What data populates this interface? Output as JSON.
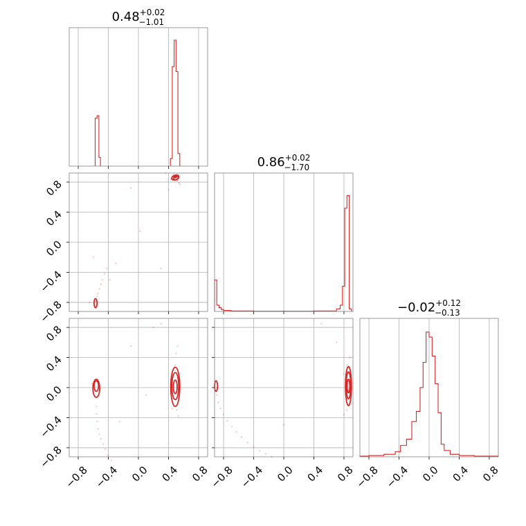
{
  "chart_data": {
    "type": "corner",
    "color": "#d62728",
    "grid": true,
    "tick_values": [
      -0.8,
      -0.4,
      0.0,
      0.4,
      0.8
    ],
    "tick_labels": [
      "−0.8",
      "−0.4",
      "0.0",
      "0.4",
      "0.8"
    ],
    "parameters": [
      {
        "title": {
          "median": "0.48",
          "upper": "+0.02",
          "lower": "−1.01"
        },
        "range": [
          -0.92,
          0.92
        ],
        "hist": {
          "bins": [
            [
              -0.575,
              -0.55,
              0.38
            ],
            [
              -0.55,
              -0.525,
              0.4
            ],
            [
              -0.525,
              -0.505,
              0.07
            ],
            [
              0.425,
              0.45,
              0.06
            ],
            [
              0.45,
              0.475,
              0.79
            ],
            [
              0.475,
              0.5,
              1.0
            ],
            [
              0.5,
              0.525,
              0.75
            ],
            [
              0.525,
              0.55,
              0.1
            ]
          ]
        }
      },
      {
        "title": {
          "median": "0.86",
          "upper": "+0.02",
          "lower": "−1.70"
        },
        "range": [
          -0.92,
          0.92
        ],
        "hist": {
          "bins": [
            [
              -0.92,
              -0.89,
              0.25
            ],
            [
              -0.89,
              -0.86,
              0.05
            ],
            [
              -0.86,
              -0.83,
              0.03
            ],
            [
              -0.83,
              -0.8,
              0.015
            ],
            [
              -0.8,
              -0.7,
              0.008
            ],
            [
              -0.7,
              -0.4,
              0.004
            ],
            [
              -0.4,
              0.4,
              0.002
            ],
            [
              0.4,
              0.7,
              0.004
            ],
            [
              0.7,
              0.75,
              0.02
            ],
            [
              0.75,
              0.78,
              0.05
            ],
            [
              0.78,
              0.81,
              0.2
            ],
            [
              0.81,
              0.84,
              0.82
            ],
            [
              0.84,
              0.87,
              0.92
            ],
            [
              0.87,
              0.9,
              0.02
            ]
          ]
        }
      },
      {
        "title": {
          "median": "−0.02",
          "upper": "+0.12",
          "lower": "−0.13"
        },
        "range": [
          -0.92,
          0.92
        ],
        "hist": {
          "bins": [
            [
              -0.92,
              -0.8,
              0.005
            ],
            [
              -0.8,
              -0.6,
              0.01
            ],
            [
              -0.6,
              -0.45,
              0.02
            ],
            [
              -0.45,
              -0.38,
              0.04
            ],
            [
              -0.38,
              -0.3,
              0.09
            ],
            [
              -0.3,
              -0.23,
              0.14
            ],
            [
              -0.23,
              -0.17,
              0.28
            ],
            [
              -0.17,
              -0.12,
              0.36
            ],
            [
              -0.12,
              -0.08,
              0.55
            ],
            [
              -0.08,
              -0.04,
              0.75
            ],
            [
              -0.04,
              0.0,
              0.99
            ],
            [
              0.0,
              0.04,
              0.95
            ],
            [
              0.04,
              0.08,
              0.8
            ],
            [
              0.08,
              0.12,
              0.58
            ],
            [
              0.12,
              0.16,
              0.35
            ],
            [
              0.16,
              0.2,
              0.1
            ],
            [
              0.2,
              0.28,
              0.05
            ],
            [
              0.28,
              0.4,
              0.02
            ],
            [
              0.4,
              0.6,
              0.01
            ],
            [
              0.6,
              0.92,
              0.005
            ]
          ]
        }
      }
    ],
    "pairs": [
      {
        "x_param": 0,
        "y_param": 1,
        "contours": [
          {
            "cx": 0.49,
            "cy": 0.86,
            "rx": 0.05,
            "ry": 0.03,
            "rot": -20
          },
          {
            "cx": 0.5,
            "cy": 0.85,
            "rx": 0.035,
            "ry": 0.02,
            "rot": -20
          },
          {
            "cx": 0.49,
            "cy": 0.87,
            "rx": 0.02,
            "ry": 0.012,
            "rot": -20
          },
          {
            "cx": -0.57,
            "cy": -0.81,
            "rx": 0.02,
            "ry": 0.06,
            "rot": 0
          }
        ],
        "samples": [
          [
            0.45,
            0.88
          ],
          [
            0.52,
            0.82
          ],
          [
            0.54,
            0.79
          ],
          [
            0.47,
            0.9
          ],
          [
            0.55,
            0.77
          ],
          [
            0.43,
            0.84
          ],
          [
            -0.1,
            0.72
          ],
          [
            0.02,
            0.15
          ],
          [
            -0.42,
            -0.35
          ],
          [
            -0.45,
            -0.42
          ],
          [
            -0.48,
            -0.5
          ],
          [
            -0.5,
            -0.56
          ],
          [
            -0.52,
            -0.62
          ],
          [
            -0.54,
            -0.68
          ],
          [
            -0.55,
            -0.72
          ],
          [
            -0.56,
            -0.76
          ],
          [
            -0.57,
            -0.79
          ],
          [
            -0.58,
            -0.84
          ],
          [
            -0.56,
            -0.86
          ],
          [
            -0.3,
            -0.28
          ],
          [
            -0.6,
            -0.2
          ],
          [
            0.3,
            -0.35
          ],
          [
            -0.65,
            -0.8
          ],
          [
            -0.38,
            -0.5
          ],
          [
            0.4,
            0.7
          ],
          [
            0.36,
            0.92
          ]
        ]
      },
      {
        "x_param": 0,
        "y_param": 2,
        "contours": [
          {
            "cx": -0.56,
            "cy": -0.01,
            "rx": 0.045,
            "ry": 0.12,
            "rot": 0
          },
          {
            "cx": -0.56,
            "cy": 0.02,
            "rx": 0.03,
            "ry": 0.07,
            "rot": 0
          },
          {
            "cx": 0.49,
            "cy": 0.01,
            "rx": 0.06,
            "ry": 0.26,
            "rot": 0
          },
          {
            "cx": 0.49,
            "cy": 0.02,
            "rx": 0.045,
            "ry": 0.18,
            "rot": 0
          },
          {
            "cx": 0.49,
            "cy": 0.01,
            "rx": 0.025,
            "ry": 0.09,
            "rot": 0
          }
        ],
        "samples": [
          [
            -0.56,
            -0.25
          ],
          [
            -0.56,
            -0.35
          ],
          [
            -0.55,
            -0.45
          ],
          [
            -0.54,
            -0.55
          ],
          [
            -0.52,
            -0.62
          ],
          [
            -0.5,
            -0.68
          ],
          [
            -0.47,
            -0.75
          ],
          [
            -0.44,
            -0.82
          ],
          [
            -0.4,
            -0.9
          ],
          [
            -0.36,
            -0.97
          ],
          [
            0.5,
            0.45
          ],
          [
            0.52,
            0.55
          ],
          [
            0.49,
            0.3
          ],
          [
            0.51,
            -0.3
          ],
          [
            0.53,
            -0.38
          ],
          [
            0.45,
            -0.28
          ],
          [
            0.55,
            0.1
          ],
          [
            -0.62,
            0.05
          ],
          [
            -0.1,
            0.55
          ],
          [
            0.2,
            0.8
          ],
          [
            -0.25,
            -0.45
          ],
          [
            0.1,
            -0.1
          ],
          [
            0.3,
            0.85
          ]
        ]
      },
      {
        "x_param": 1,
        "y_param": 2,
        "contours": [
          {
            "cx": 0.86,
            "cy": 0.02,
            "rx": 0.04,
            "ry": 0.26,
            "rot": 0
          },
          {
            "cx": 0.86,
            "cy": 0.03,
            "rx": 0.03,
            "ry": 0.18,
            "rot": 0
          },
          {
            "cx": 0.86,
            "cy": 0.02,
            "rx": 0.018,
            "ry": 0.09,
            "rot": 0
          },
          {
            "cx": -0.9,
            "cy": 0.02,
            "rx": 0.02,
            "ry": 0.07,
            "rot": 0
          }
        ],
        "samples": [
          [
            -0.89,
            -0.1
          ],
          [
            -0.87,
            -0.2
          ],
          [
            -0.84,
            -0.28
          ],
          [
            -0.8,
            -0.36
          ],
          [
            -0.75,
            -0.44
          ],
          [
            -0.69,
            -0.52
          ],
          [
            -0.63,
            -0.59
          ],
          [
            -0.56,
            -0.66
          ],
          [
            -0.48,
            -0.73
          ],
          [
            -0.4,
            -0.79
          ],
          [
            -0.32,
            -0.84
          ],
          [
            -0.24,
            -0.88
          ],
          [
            -0.16,
            -0.92
          ],
          [
            0.88,
            0.4
          ],
          [
            0.84,
            0.3
          ],
          [
            0.8,
            0.18
          ],
          [
            0.84,
            -0.3
          ],
          [
            0.8,
            -0.36
          ],
          [
            0.9,
            -0.22
          ],
          [
            0.5,
            0.85
          ],
          [
            0.7,
            0.6
          ],
          [
            0.0,
            -0.5
          ],
          [
            0.4,
            -0.93
          ]
        ]
      }
    ]
  }
}
